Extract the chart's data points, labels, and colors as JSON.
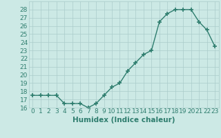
{
  "x": [
    0,
    1,
    2,
    3,
    4,
    5,
    6,
    7,
    8,
    9,
    10,
    11,
    12,
    13,
    14,
    15,
    16,
    17,
    18,
    19,
    20,
    21,
    22,
    23
  ],
  "y": [
    17.5,
    17.5,
    17.5,
    17.5,
    16.5,
    16.5,
    16.5,
    16.0,
    16.5,
    17.5,
    18.5,
    19.0,
    20.5,
    21.5,
    22.5,
    23.0,
    26.5,
    27.5,
    28.0,
    28.0,
    28.0,
    26.5,
    25.5,
    23.5
  ],
  "title": "",
  "xlabel": "Humidex (Indice chaleur)",
  "ylabel": "",
  "xlim": [
    -0.5,
    23.5
  ],
  "ylim": [
    16,
    29
  ],
  "yticks": [
    16,
    17,
    18,
    19,
    20,
    21,
    22,
    23,
    24,
    25,
    26,
    27,
    28
  ],
  "xticks": [
    0,
    1,
    2,
    3,
    4,
    5,
    6,
    7,
    8,
    9,
    10,
    11,
    12,
    13,
    14,
    15,
    16,
    17,
    18,
    19,
    20,
    21,
    22,
    23
  ],
  "line_color": "#2e7d6e",
  "marker": "+",
  "marker_size": 4,
  "bg_color": "#cce9e5",
  "grid_color": "#aaccca",
  "tick_label_fontsize": 6.5,
  "xlabel_fontsize": 7.5,
  "linewidth": 1.0
}
